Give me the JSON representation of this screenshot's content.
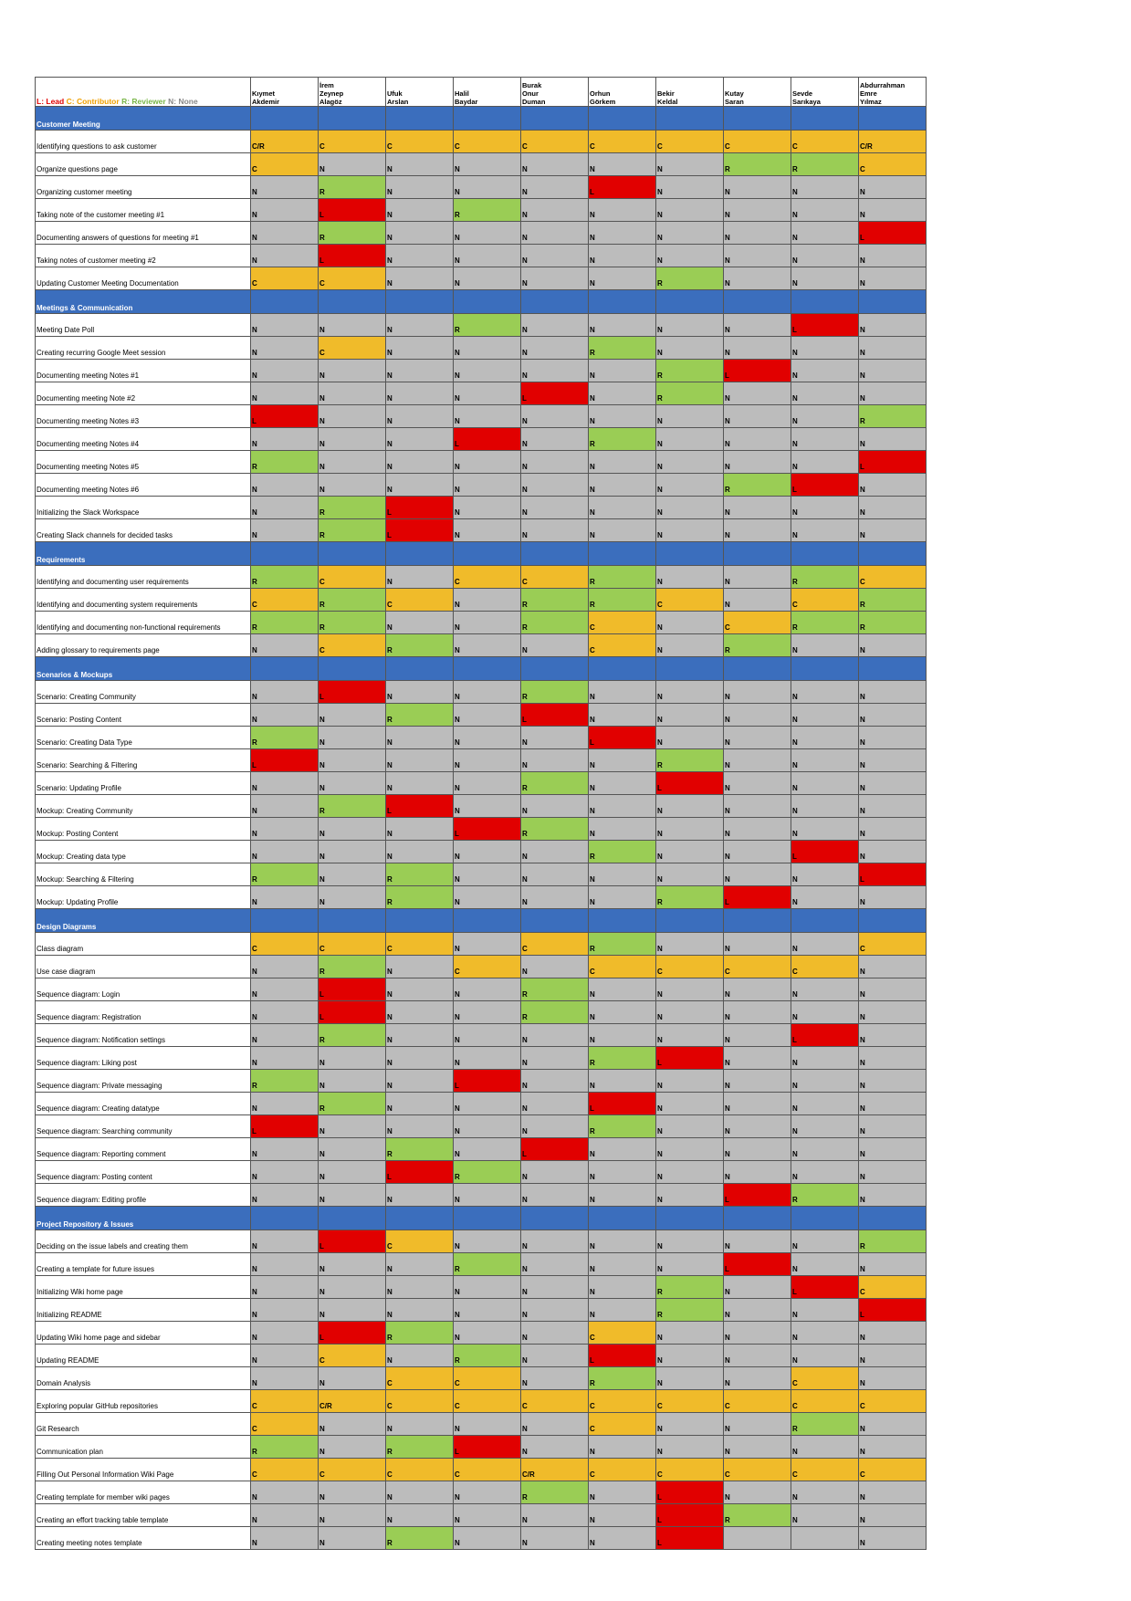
{
  "legend": {
    "L": "L: Lead",
    "C": "C: Contributor",
    "R": "R: Reviewer",
    "N": "N: None"
  },
  "members": [
    "Kıymet\nAkdemir",
    "İrem\nZeynep\nAlagöz",
    "Ufuk\nArslan",
    "Halil\nBaydar",
    "Burak\nOnur\nDuman",
    "Orhun\nGörkem",
    "Bekir\nKeldal",
    "Kutay\nSaran",
    "Sevde\nSarıkaya",
    "Abdurrahman\nEmre\nYılmaz"
  ],
  "colors": {
    "lead": "#e10000",
    "contributor": "#f0bb2a",
    "reviewer": "#9acd55",
    "none": "#bcbcbc",
    "section": "#3b6ebd"
  },
  "sections": [
    {
      "title": "Customer Meeting",
      "rows": [
        {
          "task": "Identifying questions to ask customer",
          "roles": [
            "C/R",
            "C",
            "C",
            "C",
            "C",
            "C",
            "C",
            "C",
            "C",
            "C/R"
          ]
        },
        {
          "task": "Organize questions page",
          "roles": [
            "C",
            "N",
            "N",
            "N",
            "N",
            "N",
            "N",
            "R",
            "R",
            "C"
          ]
        },
        {
          "task": "Organizing customer meeting",
          "roles": [
            "N",
            "R",
            "N",
            "N",
            "N",
            "L",
            "N",
            "N",
            "N",
            "N"
          ]
        },
        {
          "task": "Taking note of the customer meeting #1",
          "roles": [
            "N",
            "L",
            "N",
            "R",
            "N",
            "N",
            "N",
            "N",
            "N",
            "N"
          ]
        },
        {
          "task": "Documenting answers of questions for meeting #1",
          "roles": [
            "N",
            "R",
            "N",
            "N",
            "N",
            "N",
            "N",
            "N",
            "N",
            "L"
          ]
        },
        {
          "task": "Taking notes of customer meeting #2",
          "roles": [
            "N",
            "L",
            "N",
            "N",
            "N",
            "N",
            "N",
            "N",
            "N",
            "N"
          ]
        },
        {
          "task": "Updating Customer Meeting Documentation",
          "roles": [
            "C",
            "C",
            "N",
            "N",
            "N",
            "N",
            "R",
            "N",
            "N",
            "N"
          ]
        }
      ]
    },
    {
      "title": "Meetings & Communication",
      "rows": [
        {
          "task": "Meeting Date Poll",
          "roles": [
            "N",
            "N",
            "N",
            "R",
            "N",
            "N",
            "N",
            "N",
            "L",
            "N"
          ]
        },
        {
          "task": "Creating recurring Google Meet session",
          "roles": [
            "N",
            "C",
            "N",
            "N",
            "N",
            "R",
            "N",
            "N",
            "N",
            "N"
          ]
        },
        {
          "task": "Documenting meeting Notes #1",
          "roles": [
            "N",
            "N",
            "N",
            "N",
            "N",
            "N",
            "R",
            "L",
            "N",
            "N"
          ]
        },
        {
          "task": "Documenting meeting Note #2",
          "roles": [
            "N",
            "N",
            "N",
            "N",
            "L",
            "N",
            "R",
            "N",
            "N",
            "N"
          ]
        },
        {
          "task": "Documenting meeting Notes #3",
          "roles": [
            "L",
            "N",
            "N",
            "N",
            "N",
            "N",
            "N",
            "N",
            "N",
            "R"
          ]
        },
        {
          "task": "Documenting meeting Notes #4",
          "roles": [
            "N",
            "N",
            "N",
            "L",
            "N",
            "R",
            "N",
            "N",
            "N",
            "N"
          ]
        },
        {
          "task": "Documenting meeting Notes #5",
          "roles": [
            "R",
            "N",
            "N",
            "N",
            "N",
            "N",
            "N",
            "N",
            "N",
            "L"
          ]
        },
        {
          "task": "Documenting meeting Notes #6",
          "roles": [
            "N",
            "N",
            "N",
            "N",
            "N",
            "N",
            "N",
            "R",
            "L",
            "N"
          ]
        },
        {
          "task": "Initializing the Slack Workspace",
          "roles": [
            "N",
            "R",
            "L",
            "N",
            "N",
            "N",
            "N",
            "N",
            "N",
            "N"
          ]
        },
        {
          "task": "Creating Slack channels for decided tasks",
          "roles": [
            "N",
            "R",
            "L",
            "N",
            "N",
            "N",
            "N",
            "N",
            "N",
            "N"
          ]
        }
      ]
    },
    {
      "title": "Requirements",
      "rows": [
        {
          "task": "Identifying and documenting user requirements",
          "roles": [
            "R",
            "C",
            "N",
            "C",
            "C",
            "R",
            "N",
            "N",
            "R",
            "C"
          ]
        },
        {
          "task": "Identifying and documenting system requirements",
          "roles": [
            "C",
            "R",
            "C",
            "N",
            "R",
            "R",
            "C",
            "N",
            "C",
            "R"
          ]
        },
        {
          "task": "Identifying and documenting non-functional requirements",
          "roles": [
            "R",
            "R",
            "N",
            "N",
            "R",
            "C",
            "N",
            "C",
            "R",
            "R"
          ]
        },
        {
          "task": "Adding glossary to requirements page",
          "roles": [
            "N",
            "C",
            "R",
            "N",
            "N",
            "C",
            "N",
            "R",
            "N",
            "N"
          ]
        }
      ]
    },
    {
      "title": "Scenarios & Mockups",
      "rows": [
        {
          "task": "Scenario: Creating Community",
          "roles": [
            "N",
            "L",
            "N",
            "N",
            "R",
            "N",
            "N",
            "N",
            "N",
            "N"
          ]
        },
        {
          "task": "Scenario: Posting Content",
          "roles": [
            "N",
            "N",
            "R",
            "N",
            "L",
            "N",
            "N",
            "N",
            "N",
            "N"
          ]
        },
        {
          "task": "Scenario: Creating Data Type",
          "roles": [
            "R",
            "N",
            "N",
            "N",
            "N",
            "L",
            "N",
            "N",
            "N",
            "N"
          ]
        },
        {
          "task": "Scenario: Searching & Filtering",
          "roles": [
            "L",
            "N",
            "N",
            "N",
            "N",
            "N",
            "R",
            "N",
            "N",
            "N"
          ]
        },
        {
          "task": "Scenario:  Updating Profile",
          "roles": [
            "N",
            "N",
            "N",
            "N",
            "R",
            "N",
            "L",
            "N",
            "N",
            "N"
          ]
        },
        {
          "task": "Mockup: Creating Community",
          "roles": [
            "N",
            "R",
            "L",
            "N",
            "N",
            "N",
            "N",
            "N",
            "N",
            "N"
          ]
        },
        {
          "task": "Mockup: Posting Content",
          "roles": [
            "N",
            "N",
            "N",
            "L",
            "R",
            "N",
            "N",
            "N",
            "N",
            "N"
          ]
        },
        {
          "task": "Mockup: Creating data type",
          "roles": [
            "N",
            "N",
            "N",
            "N",
            "N",
            "R",
            "N",
            "N",
            "L",
            "N"
          ]
        },
        {
          "task": "Mockup: Searching & Filtering",
          "roles": [
            "R",
            "N",
            "R",
            "N",
            "N",
            "N",
            "N",
            "N",
            "N",
            "L"
          ]
        },
        {
          "task": "Mockup: Updating Profile",
          "roles": [
            "N",
            "N",
            "R",
            "N",
            "N",
            "N",
            "R",
            "L",
            "N",
            "N"
          ]
        }
      ]
    },
    {
      "title": "Design Diagrams",
      "rows": [
        {
          "task": "Class diagram",
          "roles": [
            "C",
            "C",
            "C",
            "N",
            "C",
            "R",
            "N",
            "N",
            "N",
            "C"
          ]
        },
        {
          "task": "Use case diagram",
          "roles": [
            "N",
            "R",
            "N",
            "C",
            "N",
            "C",
            "C",
            "C",
            "C",
            "N"
          ]
        },
        {
          "task": "Sequence diagram: Login",
          "roles": [
            "N",
            "L",
            "N",
            "N",
            "R",
            "N",
            "N",
            "N",
            "N",
            "N"
          ]
        },
        {
          "task": "Sequence diagram: Registration",
          "roles": [
            "N",
            "L",
            "N",
            "N",
            "R",
            "N",
            "N",
            "N",
            "N",
            "N"
          ]
        },
        {
          "task": "Sequence diagram: Notification settings",
          "roles": [
            "N",
            "R",
            "N",
            "N",
            "N",
            "N",
            "N",
            "N",
            "L",
            "N"
          ]
        },
        {
          "task": "Sequence diagram: Liking post",
          "roles": [
            "N",
            "N",
            "N",
            "N",
            "N",
            "R",
            "L",
            "N",
            "N",
            "N"
          ]
        },
        {
          "task": "Sequence diagram: Private messaging",
          "roles": [
            "R",
            "N",
            "N",
            "L",
            "N",
            "N",
            "N",
            "N",
            "N",
            "N"
          ]
        },
        {
          "task": "Sequence diagram: Creating datatype",
          "roles": [
            "N",
            "R",
            "N",
            "N",
            "N",
            "L",
            "N",
            "N",
            "N",
            "N"
          ]
        },
        {
          "task": "Sequence diagram:  Searching community",
          "roles": [
            "L",
            "N",
            "N",
            "N",
            "N",
            "R",
            "N",
            "N",
            "N",
            "N"
          ]
        },
        {
          "task": "Sequence diagram: Reporting comment",
          "roles": [
            "N",
            "N",
            "R",
            "N",
            "L",
            "N",
            "N",
            "N",
            "N",
            "N"
          ]
        },
        {
          "task": "Sequence diagram:  Posting content",
          "roles": [
            "N",
            "N",
            "L",
            "R",
            "N",
            "N",
            "N",
            "N",
            "N",
            "N"
          ]
        },
        {
          "task": "Sequence diagram: Editing profile",
          "roles": [
            "N",
            "N",
            "N",
            "N",
            "N",
            "N",
            "N",
            "L",
            "R",
            "N"
          ]
        }
      ]
    },
    {
      "title": "Project Repository & Issues",
      "rows": [
        {
          "task": "Deciding on the issue labels and creating them",
          "roles": [
            "N",
            "L",
            "C",
            "N",
            "N",
            "N",
            "N",
            "N",
            "N",
            "R"
          ]
        },
        {
          "task": "Creating a template for future issues",
          "roles": [
            "N",
            "N",
            "N",
            "R",
            "N",
            "N",
            "N",
            "L",
            "N",
            "N"
          ]
        },
        {
          "task": "Initializing Wiki home page",
          "roles": [
            "N",
            "N",
            "N",
            "N",
            "N",
            "N",
            "R",
            "N",
            "L",
            "C"
          ]
        },
        {
          "task": "Initializing README",
          "roles": [
            "N",
            "N",
            "N",
            "N",
            "N",
            "N",
            "R",
            "N",
            "N",
            "L"
          ]
        },
        {
          "task": "Updating Wiki home page and sidebar",
          "roles": [
            "N",
            "L",
            "R",
            "N",
            "N",
            "C",
            "N",
            "N",
            "N",
            "N"
          ]
        },
        {
          "task": "Updating README",
          "roles": [
            "N",
            "C",
            "N",
            "R",
            "N",
            "L",
            "N",
            "N",
            "N",
            "N"
          ]
        },
        {
          "task": "Domain Analysis",
          "roles": [
            "N",
            "N",
            "C",
            "C",
            "N",
            "R",
            "N",
            "N",
            "C",
            "N"
          ]
        },
        {
          "task": "Exploring popular GitHub repositories",
          "roles": [
            "C",
            "C/R",
            "C",
            "C",
            "C",
            "C",
            "C",
            "C",
            "C",
            "C"
          ]
        },
        {
          "task": "Git Research",
          "roles": [
            "C",
            "N",
            "N",
            "N",
            "N",
            "C",
            "N",
            "N",
            "R",
            "N"
          ]
        },
        {
          "task": "Communication plan",
          "roles": [
            "R",
            "N",
            "R",
            "L",
            "N",
            "N",
            "N",
            "N",
            "N",
            "N"
          ]
        },
        {
          "task": "Filling Out Personal Information Wiki Page",
          "roles": [
            "C",
            "C",
            "C",
            "C",
            "C/R",
            "C",
            "C",
            "C",
            "C",
            "C"
          ]
        },
        {
          "task": "Creating template for member wiki pages",
          "roles": [
            "N",
            "N",
            "N",
            "N",
            "R",
            "N",
            "L",
            "N",
            "N",
            "N"
          ]
        },
        {
          "task": "Creating an effort tracking table template",
          "roles": [
            "N",
            "N",
            "N",
            "N",
            "N",
            "N",
            "L",
            "R",
            "N",
            "N"
          ]
        },
        {
          "task": "Creating meeting notes template",
          "roles": [
            "N",
            "N",
            "R",
            "N",
            "N",
            "N",
            "L",
            "",
            "",
            "N"
          ]
        }
      ]
    }
  ]
}
